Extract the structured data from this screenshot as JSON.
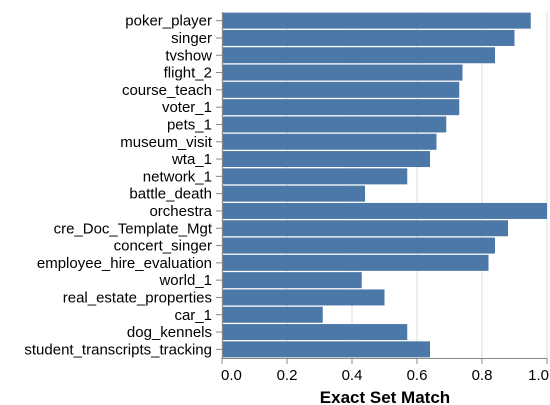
{
  "chart_data": {
    "type": "bar",
    "orientation": "horizontal",
    "categories": [
      "poker_player",
      "singer",
      "tvshow",
      "flight_2",
      "course_teach",
      "voter_1",
      "pets_1",
      "museum_visit",
      "wta_1",
      "network_1",
      "battle_death",
      "orchestra",
      "cre_Doc_Template_Mgt",
      "concert_singer",
      "employee_hire_evaluation",
      "world_1",
      "real_estate_properties",
      "car_1",
      "dog_kennels",
      "student_transcripts_tracking"
    ],
    "values": [
      0.95,
      0.9,
      0.84,
      0.74,
      0.73,
      0.73,
      0.69,
      0.66,
      0.64,
      0.57,
      0.44,
      1.0,
      0.88,
      0.84,
      0.82,
      0.43,
      0.5,
      0.31,
      0.57,
      0.64
    ],
    "xlabel": "Exact Set Match",
    "ylabel": "",
    "title": "",
    "xlim": [
      0,
      1
    ],
    "xticks": [
      "0.0",
      "0.2",
      "0.4",
      "0.6",
      "0.8",
      "1.0"
    ],
    "grid": true,
    "legend": "none",
    "bar_color": "#4c78a8",
    "grid_color": "#dddddd",
    "axis_color": "#888888"
  }
}
